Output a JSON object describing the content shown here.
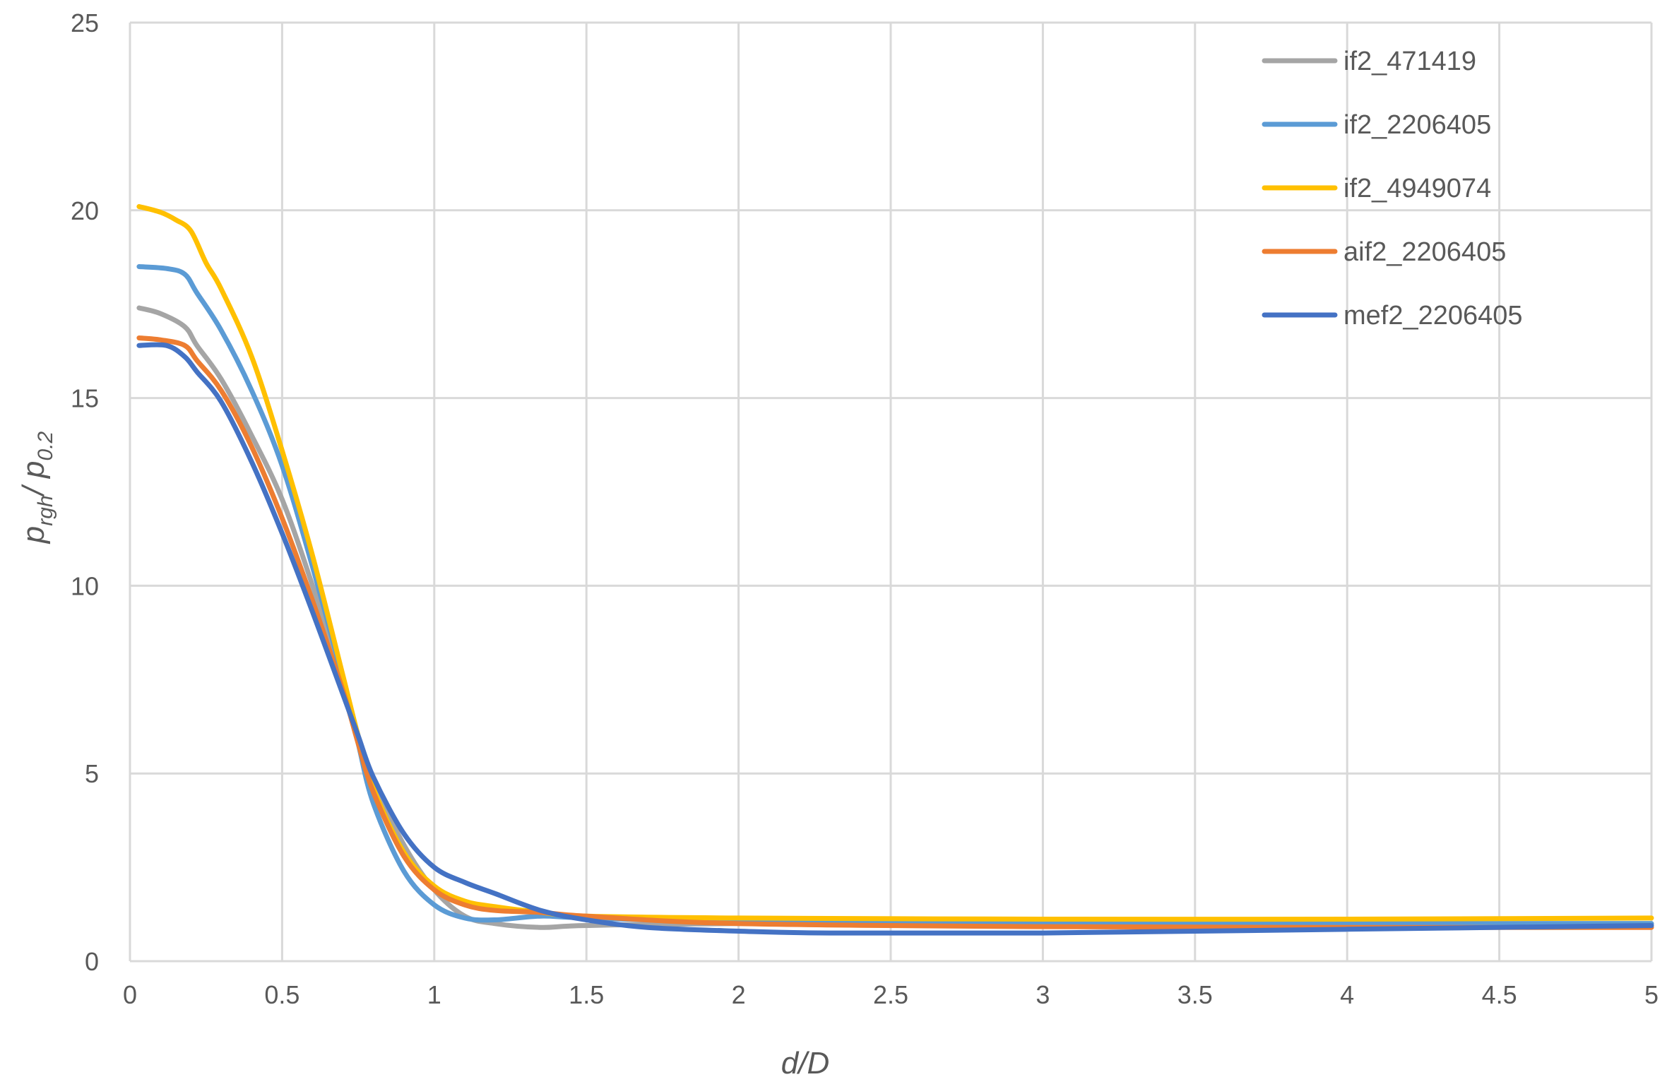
{
  "chart_data": {
    "type": "line",
    "title": "",
    "xlabel": "d/D",
    "ylabel_main": "p",
    "ylabel_sub1": "rgh",
    "ylabel_mid": "/ p",
    "ylabel_sub2": "0.2",
    "xlim": [
      0,
      5
    ],
    "ylim": [
      0,
      25
    ],
    "xticks": [
      0,
      0.5,
      1,
      1.5,
      2,
      2.5,
      3,
      3.5,
      4,
      4.5,
      5
    ],
    "xtick_labels": [
      "0",
      "0.5",
      "1",
      "1.5",
      "2",
      "2.5",
      "3",
      "3.5",
      "4",
      "4.5",
      "5"
    ],
    "yticks": [
      0,
      5,
      10,
      15,
      20,
      25
    ],
    "ytick_labels": [
      "0",
      "5",
      "10",
      "15",
      "20",
      "25"
    ],
    "grid": true,
    "legend_position": "top-right",
    "series": [
      {
        "name": "if2_471419",
        "color": "#a5a5a5",
        "points": [
          [
            0.03,
            17.4
          ],
          [
            0.1,
            17.25
          ],
          [
            0.18,
            16.9
          ],
          [
            0.22,
            16.4
          ],
          [
            0.3,
            15.5
          ],
          [
            0.4,
            14.0
          ],
          [
            0.5,
            12.3
          ],
          [
            0.6,
            10.0
          ],
          [
            0.7,
            7.4
          ],
          [
            0.75,
            6.0
          ],
          [
            0.8,
            4.8
          ],
          [
            0.9,
            3.1
          ],
          [
            1.0,
            1.9
          ],
          [
            1.1,
            1.2
          ],
          [
            1.2,
            1.0
          ],
          [
            1.35,
            0.9
          ],
          [
            1.5,
            0.95
          ],
          [
            2.0,
            1.0
          ],
          [
            3.0,
            1.0
          ],
          [
            4.0,
            1.0
          ],
          [
            5.0,
            1.0
          ]
        ]
      },
      {
        "name": "if2_2206405",
        "color": "#5b9bd5",
        "points": [
          [
            0.03,
            18.5
          ],
          [
            0.12,
            18.45
          ],
          [
            0.18,
            18.3
          ],
          [
            0.22,
            17.8
          ],
          [
            0.3,
            16.8
          ],
          [
            0.4,
            15.2
          ],
          [
            0.5,
            13.2
          ],
          [
            0.6,
            10.5
          ],
          [
            0.7,
            7.5
          ],
          [
            0.75,
            5.8
          ],
          [
            0.8,
            4.2
          ],
          [
            0.9,
            2.4
          ],
          [
            1.0,
            1.5
          ],
          [
            1.1,
            1.15
          ],
          [
            1.2,
            1.1
          ],
          [
            1.35,
            1.2
          ],
          [
            1.5,
            1.15
          ],
          [
            2.0,
            1.05
          ],
          [
            3.0,
            1.0
          ],
          [
            4.0,
            1.0
          ],
          [
            5.0,
            1.0
          ]
        ]
      },
      {
        "name": "if2_4949074",
        "color": "#ffc000",
        "points": [
          [
            0.03,
            20.1
          ],
          [
            0.1,
            19.95
          ],
          [
            0.15,
            19.75
          ],
          [
            0.2,
            19.45
          ],
          [
            0.25,
            18.6
          ],
          [
            0.3,
            17.9
          ],
          [
            0.4,
            16.1
          ],
          [
            0.5,
            13.6
          ],
          [
            0.6,
            10.8
          ],
          [
            0.7,
            7.6
          ],
          [
            0.75,
            6.0
          ],
          [
            0.8,
            4.6
          ],
          [
            0.9,
            2.9
          ],
          [
            1.0,
            2.0
          ],
          [
            1.1,
            1.6
          ],
          [
            1.2,
            1.45
          ],
          [
            1.35,
            1.3
          ],
          [
            1.5,
            1.2
          ],
          [
            2.0,
            1.15
          ],
          [
            3.0,
            1.12
          ],
          [
            4.0,
            1.12
          ],
          [
            5.0,
            1.15
          ]
        ]
      },
      {
        "name": "aif2_2206405",
        "color": "#ed7d31",
        "points": [
          [
            0.03,
            16.6
          ],
          [
            0.1,
            16.55
          ],
          [
            0.18,
            16.4
          ],
          [
            0.22,
            16.0
          ],
          [
            0.3,
            15.2
          ],
          [
            0.4,
            13.7
          ],
          [
            0.5,
            11.8
          ],
          [
            0.6,
            9.6
          ],
          [
            0.7,
            7.2
          ],
          [
            0.75,
            5.8
          ],
          [
            0.8,
            4.5
          ],
          [
            0.9,
            2.8
          ],
          [
            1.0,
            1.9
          ],
          [
            1.1,
            1.5
          ],
          [
            1.2,
            1.35
          ],
          [
            1.35,
            1.3
          ],
          [
            1.5,
            1.2
          ],
          [
            2.0,
            1.0
          ],
          [
            3.0,
            0.92
          ],
          [
            4.0,
            0.9
          ],
          [
            5.0,
            0.9
          ]
        ]
      },
      {
        "name": "mef2_2206405",
        "color": "#4472c4",
        "points": [
          [
            0.03,
            16.4
          ],
          [
            0.12,
            16.4
          ],
          [
            0.18,
            16.1
          ],
          [
            0.22,
            15.7
          ],
          [
            0.3,
            14.9
          ],
          [
            0.4,
            13.3
          ],
          [
            0.5,
            11.4
          ],
          [
            0.6,
            9.3
          ],
          [
            0.7,
            7.1
          ],
          [
            0.75,
            6.0
          ],
          [
            0.8,
            4.9
          ],
          [
            0.9,
            3.4
          ],
          [
            1.0,
            2.5
          ],
          [
            1.1,
            2.1
          ],
          [
            1.2,
            1.8
          ],
          [
            1.35,
            1.35
          ],
          [
            1.5,
            1.1
          ],
          [
            1.7,
            0.9
          ],
          [
            2.0,
            0.8
          ],
          [
            2.3,
            0.75
          ],
          [
            3.0,
            0.75
          ],
          [
            4.0,
            0.85
          ],
          [
            5.0,
            0.95
          ]
        ]
      }
    ]
  }
}
